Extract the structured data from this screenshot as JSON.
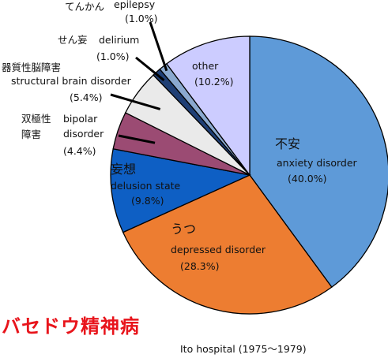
{
  "chart_data": {
    "type": "pie",
    "title": "バセドウ精神病",
    "source": "Ito hospital (1975～1979)",
    "slices": [
      {
        "name_en": "anxiety disorder",
        "name_jp": "不安",
        "value": 40.0,
        "pct_label": "(40.0%)",
        "color": "#5e9ad8"
      },
      {
        "name_en": "depressed disorder",
        "name_jp": "うつ",
        "value": 28.3,
        "pct_label": "(28.3%)",
        "color": "#ed7d31"
      },
      {
        "name_en": "delusion state",
        "name_jp": "妄想",
        "value": 9.8,
        "pct_label": "(9.8%)",
        "color": "#0e5fc4"
      },
      {
        "name_en": "bipolar disorder",
        "name_en_line1": "bipolar",
        "name_en_line2": "disorder",
        "name_jp": "双極性障害",
        "name_jp_line1": "双極性",
        "name_jp_line2": "障害",
        "value": 4.4,
        "pct_label": "(4.4%)",
        "color": "#9b4b73"
      },
      {
        "name_en": "structural brain disorder",
        "name_jp": "器質性脳障害",
        "value": 5.4,
        "pct_label": "(5.4%)",
        "color": "#eaeaea"
      },
      {
        "name_en": "delirium",
        "name_jp": "せん妄",
        "value": 1.0,
        "pct_label": "(1.0%)",
        "color": "#1f3f75"
      },
      {
        "name_en": "epilepsy",
        "name_jp": "てんかん",
        "value": 1.0,
        "pct_label": "(1.0%)",
        "color": "#8aa9cf"
      },
      {
        "name_en": "other",
        "name_jp": "",
        "value": 10.2,
        "pct_label": "(10.2%)",
        "color": "#ccccff"
      }
    ]
  }
}
